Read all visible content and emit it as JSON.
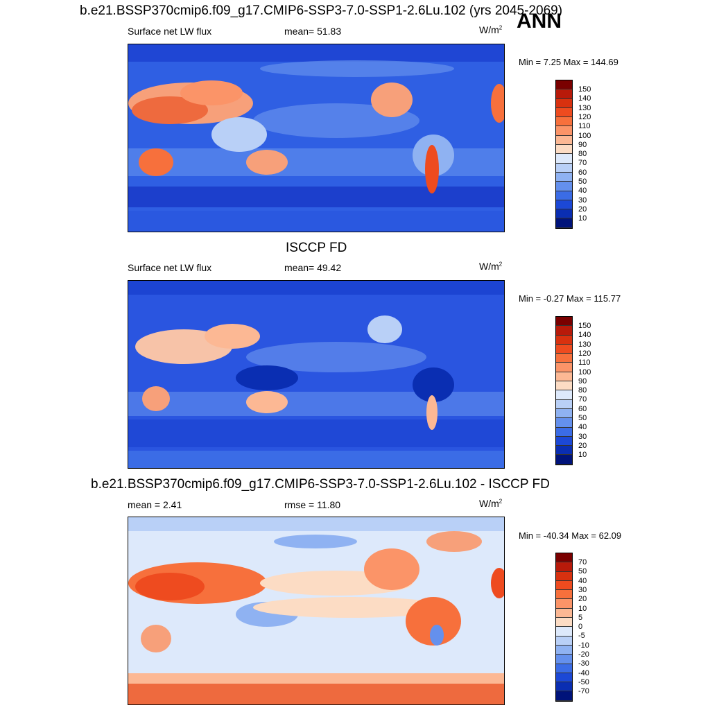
{
  "header": {
    "title": "b.e21.BSSP370cmip6.f09_g17.CMIP6-SSP3-7.0-SSP1-2.6Lu.102 (yrs 2045-2069)",
    "season": "ANN"
  },
  "panels": [
    {
      "title": "",
      "left_label": "Surface net LW flux",
      "stat_label": "mean=  51.83",
      "units": "W/m",
      "units_exp": "2",
      "minmax": "Min =   7.25 Max = 144.69",
      "colorbar_labels": [
        "150",
        "140",
        "130",
        "120",
        "110",
        "100",
        "90",
        "80",
        "70",
        "60",
        "50",
        "40",
        "30",
        "20",
        "10"
      ],
      "colorbar_colors": [
        "#7a0000",
        "#b81a0a",
        "#d8310f",
        "#ee4b1f",
        "#f7703c",
        "#fb9468",
        "#fcb894",
        "#fcdcc4",
        "#dde9fb",
        "#b9d0f7",
        "#8fb2f2",
        "#6490ed",
        "#3b6ce6",
        "#1c48d6",
        "#0a2eb2",
        "#00137a"
      ]
    },
    {
      "title": "ISCCP FD",
      "left_label": "Surface net LW flux",
      "stat_label": "mean=  49.42",
      "units": "W/m",
      "units_exp": "2",
      "minmax": "Min =  -0.27 Max = 115.77",
      "colorbar_labels": [
        "150",
        "140",
        "130",
        "120",
        "110",
        "100",
        "90",
        "80",
        "70",
        "60",
        "50",
        "40",
        "30",
        "20",
        "10"
      ],
      "colorbar_colors": [
        "#7a0000",
        "#b81a0a",
        "#d8310f",
        "#ee4b1f",
        "#f7703c",
        "#fb9468",
        "#fcb894",
        "#fcdcc4",
        "#dde9fb",
        "#b9d0f7",
        "#8fb2f2",
        "#6490ed",
        "#3b6ce6",
        "#1c48d6",
        "#0a2eb2",
        "#00137a"
      ]
    },
    {
      "title": "b.e21.BSSP370cmip6.f09_g17.CMIP6-SSP3-7.0-SSP1-2.6Lu.102 - ISCCP FD",
      "left_label": "mean =   2.41",
      "stat_label": "rmse =  11.80",
      "units": "W/m",
      "units_exp": "2",
      "minmax": "Min = -40.34 Max =  62.09",
      "colorbar_labels": [
        "70",
        "50",
        "40",
        "30",
        "20",
        "10",
        "5",
        "0",
        "-5",
        "-10",
        "-20",
        "-30",
        "-40",
        "-50",
        "-70"
      ],
      "colorbar_colors": [
        "#7a0000",
        "#b81a0a",
        "#d8310f",
        "#ee4b1f",
        "#f7703c",
        "#fb9468",
        "#fcb894",
        "#fcdcc4",
        "#dde9fb",
        "#b9d0f7",
        "#8fb2f2",
        "#6490ed",
        "#3b6ce6",
        "#1c48d6",
        "#0a2eb2",
        "#00137a"
      ]
    }
  ]
}
